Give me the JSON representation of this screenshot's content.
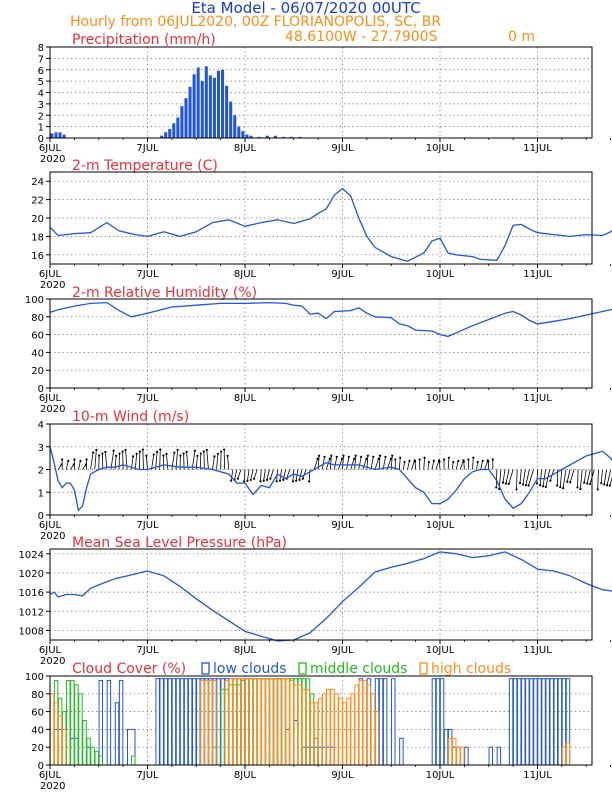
{
  "header": {
    "title": "Eta Model - 06/07/2020 00UTC",
    "subtitle": "Hourly from 06JUL2020, 00Z  FLORIANOPOLIS, SC, BR",
    "coords": "48.6100W - 27.7900S",
    "elevation": "0   m"
  },
  "colors": {
    "title": "#1a3ccc",
    "orange": "#ff8c1a",
    "red": "#e8303a",
    "blue": "#2255dd",
    "green": "#22bb22",
    "black": "#000000",
    "grid": "#555555"
  },
  "chart_data": [
    {
      "type": "bar",
      "name": "precip",
      "title": "Precipitation (mm/h)",
      "ylim": [
        0,
        8
      ],
      "yticks": [
        "0",
        "1",
        "2",
        "3",
        "4",
        "5",
        "6",
        "7",
        "8"
      ],
      "xticks": [
        "6JUL",
        "7JUL",
        "8JUL",
        "9JUL",
        "10JUL",
        "11JUL"
      ],
      "year_label": "2020",
      "x_hours": [
        0,
        1,
        2,
        3,
        27,
        28,
        29,
        30,
        31,
        32,
        33,
        34,
        35,
        36,
        37,
        38,
        39,
        40,
        41,
        42,
        43,
        44,
        45,
        46,
        47,
        48,
        49,
        51,
        53,
        55,
        57,
        59,
        61,
        140
      ],
      "values": [
        0.4,
        0.5,
        0.5,
        0.3,
        0.2,
        0.5,
        0.8,
        1.3,
        1.8,
        2.8,
        3.5,
        4.5,
        5.6,
        6.2,
        5.0,
        6.3,
        5.5,
        5.3,
        5.9,
        6.0,
        4.6,
        3.2,
        2.0,
        1.0,
        0.6,
        0.3,
        0.2,
        0.1,
        0.2,
        0.2,
        0.1,
        0.1,
        0.1,
        0.1
      ]
    },
    {
      "type": "line",
      "name": "temp",
      "title": "2-m Temperature (C)",
      "ylim": [
        15,
        25
      ],
      "yticks": [
        "16",
        "18",
        "20",
        "22",
        "24"
      ],
      "xticks": [
        "6JUL",
        "7JUL",
        "8JUL",
        "9JUL",
        "10JUL",
        "11JUL"
      ],
      "year_label": "2020",
      "x": [
        0,
        2,
        6,
        10,
        14,
        17,
        21,
        24,
        28,
        32,
        36,
        40,
        44,
        48,
        52,
        56,
        60,
        64,
        66,
        68,
        70,
        72,
        74,
        76,
        78,
        80,
        84,
        88,
        92,
        94,
        96,
        98,
        100,
        104,
        106,
        110,
        112,
        114,
        116,
        118,
        120,
        124,
        128,
        132,
        136,
        138,
        140
      ],
      "y": [
        19.0,
        18.1,
        18.3,
        18.4,
        19.5,
        18.6,
        18.2,
        18.0,
        18.5,
        18.0,
        18.5,
        19.5,
        19.8,
        19.1,
        19.5,
        19.8,
        19.4,
        19.9,
        20.5,
        21.0,
        22.5,
        23.2,
        22.4,
        20.0,
        18.0,
        16.8,
        15.8,
        15.3,
        16.2,
        17.5,
        17.8,
        16.2,
        16.0,
        15.8,
        15.5,
        15.4,
        17.0,
        19.2,
        19.3,
        18.8,
        18.4,
        18.2,
        18.0,
        18.2,
        18.1,
        18.5,
        19.2
      ]
    },
    {
      "type": "line",
      "name": "rh",
      "title": "2-m Relative Humidity (%)",
      "ylim": [
        0,
        100
      ],
      "yticks": [
        "0",
        "20",
        "40",
        "60",
        "80",
        "100"
      ],
      "xticks": [
        "6JUL",
        "7JUL",
        "8JUL",
        "9JUL",
        "10JUL",
        "11JUL"
      ],
      "year_label": "2020",
      "x": [
        0,
        2,
        6,
        10,
        14,
        17,
        20,
        24,
        30,
        36,
        42,
        48,
        54,
        58,
        60,
        62,
        64,
        66,
        68,
        70,
        74,
        76,
        78,
        80,
        84,
        86,
        88,
        90,
        94,
        96,
        98,
        100,
        104,
        108,
        112,
        114,
        116,
        118,
        120,
        124,
        128,
        132,
        136,
        140
      ],
      "y": [
        85,
        88,
        92,
        95,
        96,
        87,
        80,
        84,
        91,
        93,
        95,
        95,
        96,
        95,
        93,
        92,
        83,
        84,
        78,
        86,
        87,
        90,
        84,
        80,
        79,
        72,
        70,
        65,
        64,
        60,
        58,
        62,
        70,
        77,
        84,
        86,
        82,
        76,
        72,
        75,
        78,
        82,
        86,
        90
      ],
      "show_zero_tick": true
    },
    {
      "type": "line",
      "name": "wind",
      "title": "10-m Wind (m/s)",
      "ylim": [
        0,
        4
      ],
      "yticks": [
        "0",
        "1",
        "2",
        "3",
        "4"
      ],
      "xticks": [
        "6JUL",
        "7JUL",
        "8JUL",
        "9JUL",
        "10JUL",
        "11JUL"
      ],
      "year_label": "2020",
      "x": [
        0,
        1,
        2,
        3,
        4,
        5,
        6,
        7,
        8,
        9,
        10,
        12,
        14,
        16,
        18,
        20,
        22,
        24,
        26,
        28,
        32,
        36,
        40,
        44,
        46,
        48,
        50,
        52,
        54,
        56,
        58,
        60,
        62,
        64,
        66,
        68,
        70,
        72,
        76,
        80,
        84,
        86,
        88,
        90,
        92,
        94,
        96,
        98,
        100,
        102,
        104,
        106,
        108,
        110,
        112,
        114,
        116,
        118,
        120,
        122,
        124,
        126,
        128,
        130,
        132,
        134,
        136,
        138,
        140
      ],
      "y": [
        3.0,
        2.3,
        1.5,
        1.2,
        1.4,
        1.4,
        1.1,
        0.2,
        0.4,
        1.2,
        1.8,
        2.0,
        2.1,
        2.1,
        2.2,
        2.1,
        2.0,
        2.0,
        2.1,
        2.2,
        2.1,
        2.1,
        2.0,
        1.8,
        1.4,
        1.4,
        0.9,
        1.3,
        1.2,
        1.8,
        1.6,
        1.8,
        1.7,
        1.9,
        2.1,
        2.3,
        2.2,
        2.2,
        2.2,
        2.0,
        2.1,
        2.0,
        1.6,
        1.2,
        1.0,
        0.5,
        0.5,
        0.7,
        1.1,
        1.6,
        1.9,
        2.0,
        2.0,
        1.5,
        0.7,
        0.3,
        0.5,
        1.0,
        1.6,
        1.6,
        1.8,
        2.0,
        2.2,
        2.4,
        2.6,
        2.7,
        2.8,
        2.5,
        2.0
      ],
      "barbs": "wind arrows"
    },
    {
      "type": "line",
      "name": "mslp",
      "title": "Mean Sea Level Pressure (hPa)",
      "ylim": [
        1006,
        1025
      ],
      "yticks": [
        "1008",
        "1012",
        "1016",
        "1020",
        "1024"
      ],
      "xticks": [
        "6JUL",
        "7JUL",
        "8JUL",
        "9JUL",
        "10JUL",
        "11JUL"
      ],
      "year_label": "2020",
      "x": [
        0,
        1,
        2,
        4,
        6,
        8,
        10,
        12,
        16,
        20,
        24,
        28,
        32,
        36,
        40,
        44,
        48,
        52,
        56,
        60,
        64,
        68,
        72,
        76,
        80,
        84,
        88,
        92,
        96,
        100,
        104,
        108,
        112,
        116,
        120,
        124,
        128,
        132,
        136,
        140
      ],
      "y": [
        1015.5,
        1016.0,
        1015.0,
        1015.5,
        1015.5,
        1015.2,
        1016.8,
        1017.5,
        1018.8,
        1019.6,
        1020.4,
        1019.4,
        1017.2,
        1014.6,
        1012.2,
        1010.0,
        1007.8,
        1006.8,
        1005.8,
        1006.0,
        1007.5,
        1010.5,
        1014.0,
        1017.0,
        1020.2,
        1021.2,
        1022.0,
        1023.0,
        1024.4,
        1024.0,
        1023.2,
        1023.6,
        1024.4,
        1022.8,
        1020.8,
        1020.4,
        1019.4,
        1017.8,
        1016.5,
        1016.0
      ]
    },
    {
      "type": "bar",
      "name": "cloud",
      "title": "Cloud Cover (%)",
      "ylim": [
        0,
        100
      ],
      "yticks": [
        "0",
        "20",
        "40",
        "60",
        "80",
        "100"
      ],
      "xticks": [
        "6JUL",
        "7JUL",
        "8JUL",
        "9JUL",
        "10JUL",
        "11JUL"
      ],
      "year_label": "2020",
      "legend": [
        "low clouds",
        "middle clouds",
        "high clouds"
      ],
      "series": [
        {
          "name": "low clouds",
          "x_start": [
            1,
            5,
            9,
            12,
            14,
            16,
            17,
            19,
            26,
            27,
            28,
            29,
            30,
            31,
            32,
            33,
            34,
            35,
            36,
            37,
            38,
            39,
            40,
            41,
            42,
            43,
            44,
            45,
            46,
            47,
            48,
            49,
            50,
            51,
            52,
            53,
            54,
            55,
            56,
            58,
            60,
            62,
            63,
            64,
            65,
            66,
            67,
            68,
            69,
            76,
            78,
            80,
            81,
            82,
            84,
            86,
            94,
            95,
            96,
            97,
            98,
            99,
            100,
            102,
            108,
            110,
            113,
            114,
            115,
            116,
            117,
            118,
            119,
            120,
            121,
            122,
            123,
            124,
            125,
            126,
            127
          ],
          "x_end": [
            3,
            7,
            10,
            13,
            15,
            17,
            18,
            21,
            27,
            28,
            29,
            30,
            31,
            32,
            33,
            34,
            35,
            36,
            37,
            38,
            39,
            40,
            41,
            42,
            43,
            44,
            45,
            46,
            47,
            48,
            49,
            50,
            51,
            52,
            53,
            54,
            55,
            56,
            57,
            59,
            61,
            63,
            64,
            65,
            66,
            67,
            68,
            69,
            70,
            77,
            79,
            81,
            82,
            83,
            85,
            87,
            95,
            96,
            97,
            98,
            99,
            100,
            101,
            103,
            109,
            111,
            114,
            115,
            116,
            117,
            118,
            119,
            120,
            121,
            122,
            123,
            124,
            125,
            126,
            127,
            128
          ],
          "values": [
            40,
            30,
            20,
            95,
            95,
            70,
            95,
            40,
            97,
            97,
            97,
            97,
            97,
            97,
            97,
            97,
            97,
            97,
            97,
            97,
            97,
            97,
            97,
            97,
            97,
            97,
            97,
            97,
            97,
            97,
            97,
            97,
            97,
            97,
            97,
            97,
            97,
            97,
            97,
            40,
            50,
            20,
            20,
            20,
            20,
            20,
            20,
            20,
            20,
            97,
            97,
            97,
            97,
            97,
            97,
            30,
            97,
            97,
            97,
            40,
            40,
            20,
            20,
            20,
            20,
            20,
            97,
            97,
            97,
            97,
            97,
            97,
            97,
            97,
            97,
            97,
            97,
            97,
            97,
            97,
            97
          ]
        },
        {
          "name": "middle clouds",
          "x_start": [
            1,
            2,
            3,
            4,
            5,
            6,
            7,
            8,
            9,
            10,
            11,
            12,
            20,
            40,
            42,
            43,
            44,
            45,
            46,
            47,
            48,
            49,
            50,
            51,
            52,
            53,
            54,
            55,
            56,
            57,
            58,
            59,
            60,
            61,
            62,
            63,
            64,
            65
          ],
          "x_end": [
            2,
            3,
            4,
            5,
            6,
            7,
            8,
            9,
            10,
            11,
            12,
            13,
            21,
            41,
            43,
            44,
            45,
            46,
            47,
            48,
            49,
            50,
            51,
            52,
            53,
            54,
            55,
            56,
            57,
            58,
            59,
            60,
            61,
            62,
            63,
            64,
            65,
            66
          ],
          "values": [
            95,
            75,
            60,
            95,
            95,
            90,
            80,
            50,
            30,
            20,
            15,
            10,
            10,
            20,
            85,
            85,
            90,
            90,
            90,
            95,
            97,
            97,
            97,
            97,
            97,
            97,
            97,
            97,
            97,
            97,
            97,
            97,
            97,
            97,
            97,
            97,
            80,
            30
          ]
        },
        {
          "name": "high clouds",
          "x_start": [
            0,
            1,
            2,
            3,
            37,
            38,
            39,
            40,
            43,
            44,
            45,
            46,
            47,
            48,
            49,
            50,
            51,
            52,
            53,
            54,
            55,
            56,
            57,
            58,
            59,
            60,
            61,
            62,
            63,
            64,
            65,
            66,
            67,
            68,
            69,
            70,
            71,
            72,
            73,
            74,
            75,
            76,
            77,
            78,
            79,
            80,
            98,
            99,
            100,
            101,
            126,
            127
          ],
          "x_end": [
            1,
            2,
            3,
            4,
            38,
            39,
            40,
            41,
            44,
            45,
            46,
            47,
            48,
            49,
            50,
            51,
            52,
            53,
            54,
            55,
            56,
            57,
            58,
            59,
            60,
            61,
            62,
            63,
            64,
            65,
            66,
            67,
            68,
            69,
            70,
            71,
            72,
            73,
            74,
            75,
            76,
            77,
            78,
            79,
            80,
            81,
            99,
            100,
            101,
            102,
            127,
            128
          ],
          "values": [
            80,
            70,
            55,
            40,
            95,
            95,
            95,
            95,
            95,
            97,
            97,
            97,
            97,
            97,
            97,
            97,
            97,
            97,
            97,
            97,
            97,
            97,
            97,
            97,
            95,
            90,
            90,
            85,
            85,
            70,
            70,
            75,
            80,
            85,
            85,
            80,
            75,
            70,
            75,
            80,
            90,
            95,
            95,
            90,
            80,
            60,
            30,
            30,
            20,
            20,
            20,
            25
          ]
        }
      ]
    }
  ]
}
